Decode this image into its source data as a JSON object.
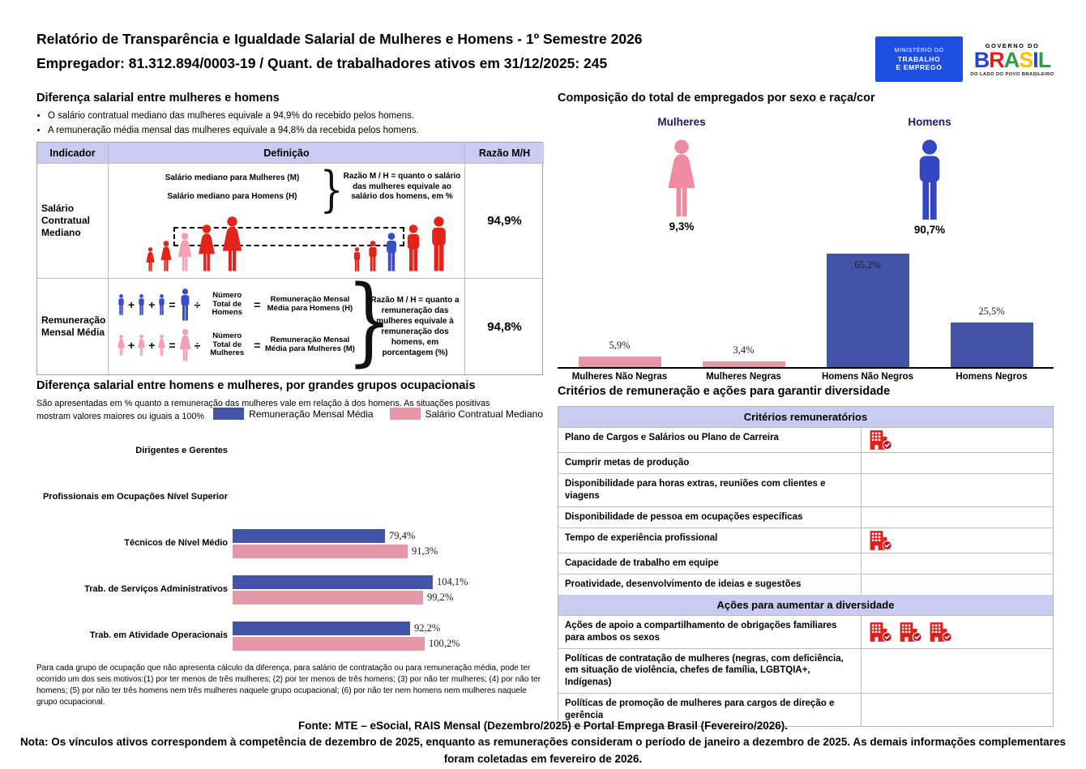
{
  "colors": {
    "bar_blue": "#4353a7",
    "bar_pink": "#e597a7",
    "figure_red": "#e3231c",
    "figure_pink": "#f2a1b5",
    "figure_blue": "#3b4cc8",
    "female_icon": "#ef8ba0",
    "male_icon": "#3347c4",
    "lavender": "#c9ccf2",
    "building_red": "#df1f1a",
    "building_check": "#c01423",
    "navy": "#1f1b5e",
    "mte_blue": "#1d4fe0"
  },
  "header": {
    "title_line1": "Relatório de Transparência e Igualdade Salarial de Mulheres e Homens - 1º Semestre 2026",
    "title_line2": "Empregador: 81.312.894/0003-19 / Quant. de trabalhadores ativos em 31/12/2025: 245",
    "logo_mte": {
      "line1": "MINISTÉRIO DO",
      "line2": "TRABALHO",
      "line3": "E EMPREGO"
    },
    "logo_gov": {
      "top": "GOVERNO DO",
      "brand": "BRASIL",
      "brand_colors": [
        "#2743c6",
        "#e3211a",
        "#2f9e41",
        "#f8c300",
        "#2743c6",
        "#2f9e41"
      ],
      "bottom": "DO LADO DO POVO BRASILEIRO"
    }
  },
  "salary_gap": {
    "title": "Diferença salarial entre mulheres e homens",
    "bullets": [
      "O salário contratual mediano das mulheres equivale a 94,9% do recebido pelos homens.",
      "A remuneração média mensal das mulheres equivale a 94,8% da recebida pelos homens."
    ],
    "table": {
      "headers": [
        "Indicador",
        "Definição",
        "Razão M/H"
      ],
      "row_median": {
        "indicator": "Salário Contratual Mediano",
        "def_line1": "Salário mediano para Mulheres (M)",
        "def_line2": "Salário mediano para Homens (H)",
        "note": "Razão M / H = quanto o salário das mulheres equivale ao salário dos homens, em %",
        "ratio": "94,9%"
      },
      "row_mean": {
        "indicator": "Remuneração Mensal Média",
        "divisor_men": "Número Total de Homens",
        "result_men": "Remuneração Mensal Média para Homens (H)",
        "divisor_women": "Número Total de Mulheres",
        "result_women": "Remuneração Mensal Média para Mulheres (M)",
        "note": "Razão M / H = quanto a remuneração das mulheres equivale à remuneração dos homens, em porcentagem (%)",
        "ratio": "94,8%",
        "ops": {
          "plus": "+",
          "eq": "=",
          "div": "÷"
        }
      }
    }
  },
  "composition": {
    "title": "Composição do total de empregados por sexo e raça/cor",
    "female_label": "Mulheres",
    "female_pct": "9,3%",
    "male_label": "Homens",
    "male_pct": "90,7%"
  },
  "occupational": {
    "title": "Diferença salarial entre homens e mulheres, por grandes grupos ocupacionais",
    "subtitle": "São apresentadas em % quanto a remuneração das mulheres vale em relação à dos homens. As situações positivas mostram valores maiores ou iguais a 100%",
    "footnote": "Para cada grupo de ocupação que não apresenta cálculo da diferença, para salário de contratação ou para remuneração média, pode ter ocorrido um dos seis motivos:(1) por ter menos de três mulheres; (2) por ter menos de três homens; (3) por não ter mulheres; (4) por não ter homens; (5) por não ter três homens nem três mulheres naquele grupo ocupacional; (6) por não ter nem homens nem mulheres naquele grupo ocupacional."
  },
  "criteria": {
    "title": "Critérios de remuneração e ações para garantir diversidade",
    "sections": [
      {
        "header": "Critérios remuneratórios",
        "rows": [
          {
            "label": "Plano de Cargos e Salários ou Plano de Carreira",
            "icons": 1
          },
          {
            "label": "Cumprir metas de produção",
            "icons": 0
          },
          {
            "label": "Disponibilidade para horas extras, reuniões com clientes e viagens",
            "icons": 0
          },
          {
            "label": "Disponibilidade de pessoa em ocupações específicas",
            "icons": 0
          },
          {
            "label": "Tempo de experiência profissional",
            "icons": 1
          },
          {
            "label": "Capacidade de trabalho em equipe",
            "icons": 0
          },
          {
            "label": "Proatividade, desenvolvimento de ideias e sugestões",
            "icons": 0
          }
        ]
      },
      {
        "header": "Ações para aumentar a diversidade",
        "rows": [
          {
            "label": "Ações de apoio a compartilhamento de obrigações familiares para ambos os sexos",
            "icons": 3
          },
          {
            "label": "Políticas de contratação de mulheres (negras, com deficiência, em situação de violência, chefes de família, LGBTQIA+, Indígenas)",
            "icons": 0
          },
          {
            "label": "Políticas de promoção de mulheres para cargos de direção e gerência",
            "icons": 0
          }
        ]
      }
    ]
  },
  "footer": {
    "fonte": "Fonte: MTE – eSocial, RAIS Mensal (Dezembro/2025) e Portal Emprega Brasil (Fevereiro/2026).",
    "nota": "Nota: Os vínculos ativos correspondem à competência de dezembro de 2025, enquanto as remunerações consideram o período de janeiro a dezembro de 2025. As demais informações complementares foram coletadas em fevereiro de 2026."
  },
  "chart_data": [
    {
      "type": "bar",
      "title": "Composição do total de empregados por sexo e raça/cor",
      "categories": [
        "Mulheres Não Negras",
        "Mulheres Negras",
        "Homens Não Negros",
        "Homens Negros"
      ],
      "values": [
        5.9,
        3.4,
        65.2,
        25.5
      ],
      "labels": [
        "5,9%",
        "3,4%",
        "65,2%",
        "25,5%"
      ],
      "colors": [
        "#e597a7",
        "#e597a7",
        "#4353a7",
        "#4353a7"
      ],
      "xlabel": "",
      "ylabel": "",
      "ylim": [
        0,
        70
      ],
      "grid": false,
      "summary": {
        "female_total_pct": 9.3,
        "male_total_pct": 90.7
      }
    },
    {
      "type": "bar",
      "orientation": "horizontal",
      "title": "Diferença salarial entre homens e mulheres, por grandes grupos ocupacionais",
      "categories": [
        "Dirigentes e Gerentes",
        "Profissionais em Ocupações Nível Superior",
        "Técnicos de Nível Médio",
        "Trab. de Serviços Administrativos",
        "Trab. em Atividade Operacionais"
      ],
      "series": [
        {
          "name": "Remuneração Mensal Média",
          "color": "#4353a7",
          "values": [
            null,
            null,
            79.4,
            104.1,
            92.2
          ],
          "labels": [
            null,
            null,
            "79,4%",
            "104,1%",
            "92,2%"
          ]
        },
        {
          "name": "Salário Contratual Mediano",
          "color": "#e597a7",
          "values": [
            null,
            null,
            91.3,
            99.2,
            100.2
          ],
          "labels": [
            null,
            null,
            "91,3%",
            "99,2%",
            "100,2%"
          ]
        }
      ],
      "xlim": [
        0,
        110
      ],
      "grid": false,
      "legend_position": "top-right"
    }
  ]
}
